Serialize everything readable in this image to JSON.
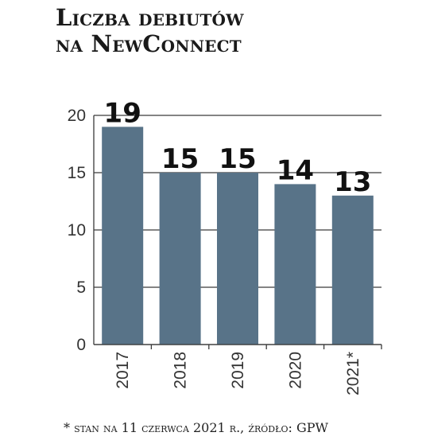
{
  "chart_data": {
    "type": "bar",
    "title_lines": [
      "Liczba debiutów",
      "na NewConnect"
    ],
    "categories": [
      "2017",
      "2018",
      "2019",
      "2020",
      "2021*"
    ],
    "values": [
      19,
      15,
      15,
      14,
      13
    ],
    "data_labels": [
      "19",
      "15",
      "15",
      "14",
      "13"
    ],
    "y_ticks": [
      0,
      5,
      10,
      15,
      20
    ],
    "ylim": [
      0,
      20
    ],
    "grid": true,
    "bar_color": "#587388",
    "footnote": "* stan na 11 czerwca 2021 r., źródło: GPW"
  }
}
